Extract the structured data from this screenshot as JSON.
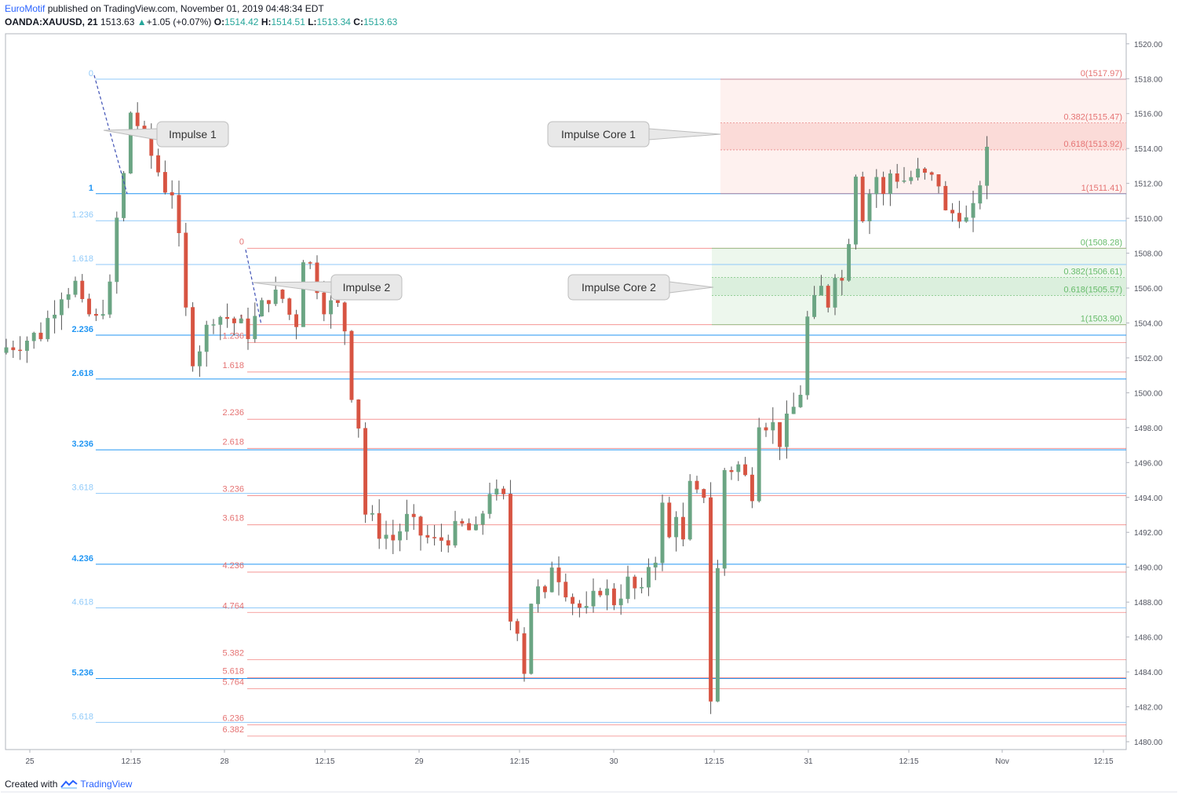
{
  "header": {
    "author": "EuroMotif",
    "published_text": "published on TradingView.com, November 01, 2019 04:48:34 EDT",
    "symbol": "OANDA:XAUUSD, 21",
    "last": "1513.63",
    "change": "+1.05 (+0.07%)",
    "o_label": "O:",
    "o_value": "1514.42",
    "h_label": "H:",
    "h_value": "1514.51",
    "l_label": "L:",
    "l_value": "1513.34",
    "c_label": "C:",
    "c_value": "1513.63"
  },
  "footer": {
    "created_with": "Created with",
    "brand": "TradingView"
  },
  "colors": {
    "up": "#6ba583",
    "down": "#d75442",
    "fib1_blue": "#2196f3",
    "fib1_light": "#90caf9",
    "fib2_red": "#ef5350",
    "core1_fill": "#fdecea",
    "core2_fill": "#e8f5e9"
  },
  "chart_data": {
    "type": "candlestick",
    "ylim": [
      1479,
      1521
    ],
    "y_ticks": [
      "1480.00",
      "1482.00",
      "1484.00",
      "1486.00",
      "1488.00",
      "1490.00",
      "1492.00",
      "1494.00",
      "1496.00",
      "1498.00",
      "1500.00",
      "1502.00",
      "1504.00",
      "1506.00",
      "1508.00",
      "1510.00",
      "1512.00",
      "1514.00",
      "1516.00",
      "1518.00",
      "1520.00"
    ],
    "x_ticks": [
      "25",
      "12:15",
      "28",
      "12:15",
      "29",
      "12:15",
      "30",
      "12:15",
      "31",
      "12:15",
      "Nov",
      "12:15"
    ],
    "price_path": [
      [
        0,
        1502.6
      ],
      [
        5,
        1503.4
      ],
      [
        8,
        1505.8
      ],
      [
        10,
        1506.2
      ],
      [
        11,
        1504.8
      ],
      [
        13,
        1504.1
      ],
      [
        15,
        1505.9
      ],
      [
        16,
        1509.9
      ],
      [
        17,
        1512.4
      ],
      [
        18,
        1516.1
      ],
      [
        19,
        1515.4
      ],
      [
        21,
        1513.6
      ],
      [
        23,
        1511.8
      ],
      [
        24,
        1511.6
      ],
      [
        25,
        1508.6
      ],
      [
        26,
        1504.6
      ],
      [
        27,
        1502.1
      ],
      [
        28,
        1502.7
      ],
      [
        30,
        1504.5
      ],
      [
        32,
        1504.3
      ],
      [
        35,
        1503.5
      ],
      [
        38,
        1505.6
      ],
      [
        40,
        1505.4
      ],
      [
        41,
        1504.5
      ],
      [
        42,
        1504.1
      ],
      [
        43,
        1507.9
      ],
      [
        44,
        1507.3
      ],
      [
        46,
        1505.1
      ],
      [
        48,
        1504.9
      ],
      [
        49,
        1503.7
      ],
      [
        50,
        1500.1
      ],
      [
        51,
        1498.2
      ],
      [
        52,
        1493.1
      ],
      [
        54,
        1492.1
      ],
      [
        56,
        1491.6
      ],
      [
        58,
        1492.7
      ],
      [
        60,
        1491.9
      ],
      [
        62,
        1491.4
      ],
      [
        64,
        1491.8
      ],
      [
        66,
        1492.3
      ],
      [
        68,
        1491.9
      ],
      [
        70,
        1494.5
      ],
      [
        71,
        1494.0
      ],
      [
        72,
        1493.8
      ],
      [
        73,
        1487.0
      ],
      [
        74,
        1486.7
      ],
      [
        75,
        1484.2
      ],
      [
        76,
        1488.1
      ],
      [
        77,
        1488.6
      ],
      [
        78,
        1488.1
      ],
      [
        79,
        1490.3
      ],
      [
        80,
        1489.6
      ],
      [
        82,
        1488.1
      ],
      [
        84,
        1487.3
      ],
      [
        86,
        1488.9
      ],
      [
        88,
        1488.1
      ],
      [
        90,
        1489.1
      ],
      [
        92,
        1488.3
      ],
      [
        93,
        1490.2
      ],
      [
        94,
        1490.7
      ],
      [
        95,
        1493.4
      ],
      [
        96,
        1491.6
      ],
      [
        97,
        1493.3
      ],
      [
        98,
        1491.3
      ],
      [
        99,
        1494.5
      ],
      [
        100,
        1494.0
      ],
      [
        101,
        1494.3
      ],
      [
        102,
        1482.5
      ],
      [
        103,
        1489.8
      ],
      [
        104,
        1495.6
      ],
      [
        106,
        1495.8
      ],
      [
        107,
        1495.1
      ],
      [
        108,
        1494.4
      ],
      [
        109,
        1498.6
      ],
      [
        111,
        1498.1
      ],
      [
        112,
        1497.3
      ],
      [
        113,
        1498.2
      ],
      [
        114,
        1499.1
      ],
      [
        115,
        1500.1
      ],
      [
        116,
        1504.2
      ],
      [
        118,
        1505.9
      ],
      [
        119,
        1505.2
      ],
      [
        120,
        1507.1
      ],
      [
        121,
        1506.4
      ],
      [
        122,
        1509.0
      ],
      [
        123,
        1512.8
      ],
      [
        124,
        1510.3
      ],
      [
        125,
        1511.5
      ],
      [
        126,
        1512.4
      ],
      [
        127,
        1511.2
      ],
      [
        128,
        1512.6
      ],
      [
        130,
        1512.2
      ],
      [
        132,
        1512.5
      ],
      [
        134,
        1512.2
      ],
      [
        135,
        1512.1
      ],
      [
        136,
        1510.2
      ],
      [
        138,
        1510.4
      ],
      [
        139,
        1509.8
      ],
      [
        140,
        1510.3
      ],
      [
        141,
        1512.2
      ],
      [
        142,
        1513.6
      ]
    ]
  },
  "drawings": {
    "fib1": {
      "levels": [
        {
          "label": "0",
          "price": 1517.97
        },
        {
          "label": "1",
          "price": 1511.41
        },
        {
          "label": "1.236",
          "price": 1509.86
        },
        {
          "label": "1.618",
          "price": 1507.35
        },
        {
          "label": "2.236",
          "price": 1503.3
        },
        {
          "label": "2.618",
          "price": 1500.79
        },
        {
          "label": "3.236",
          "price": 1496.73
        },
        {
          "label": "3.618",
          "price": 1494.23
        },
        {
          "label": "4.236",
          "price": 1490.17
        },
        {
          "label": "4.618",
          "price": 1487.67
        },
        {
          "label": "5.236",
          "price": 1483.62
        },
        {
          "label": "5.618",
          "price": 1481.11
        }
      ]
    },
    "fib2": {
      "levels": [
        {
          "label": "0",
          "price": 1508.28
        },
        {
          "label": "1",
          "price": 1503.9
        },
        {
          "label": "1.236",
          "price": 1502.87
        },
        {
          "label": "1.618",
          "price": 1501.19
        },
        {
          "label": "2.236",
          "price": 1498.48
        },
        {
          "label": "2.618",
          "price": 1496.81
        },
        {
          "label": "3.236",
          "price": 1494.1
        },
        {
          "label": "3.618",
          "price": 1492.43
        },
        {
          "label": "4.236",
          "price": 1489.72
        },
        {
          "label": "4.764",
          "price": 1487.41
        },
        {
          "label": "5.382",
          "price": 1484.7
        },
        {
          "label": "5.618",
          "price": 1483.67
        },
        {
          "label": "5.764",
          "price": 1483.03
        },
        {
          "label": "6.236",
          "price": 1480.96
        },
        {
          "label": "6.382",
          "price": 1480.32
        }
      ]
    },
    "core1": {
      "levels": [
        {
          "label": "0(1517.97)",
          "price": 1517.97
        },
        {
          "label": "0.382(1515.47)",
          "price": 1515.47
        },
        {
          "label": "0.618(1513.92)",
          "price": 1513.92
        },
        {
          "label": "1(1511.41)",
          "price": 1511.41
        }
      ]
    },
    "core2": {
      "levels": [
        {
          "label": "0(1508.28)",
          "price": 1508.28
        },
        {
          "label": "0.382(1506.61)",
          "price": 1506.61
        },
        {
          "label": "0.618(1505.57)",
          "price": 1505.57
        },
        {
          "label": "1(1503.90)",
          "price": 1503.9
        }
      ]
    },
    "callouts": {
      "impulse1": "Impulse 1",
      "impulse2": "Impulse 2",
      "core1": "Impulse Core 1",
      "core2": "Impulse Core 2"
    }
  }
}
